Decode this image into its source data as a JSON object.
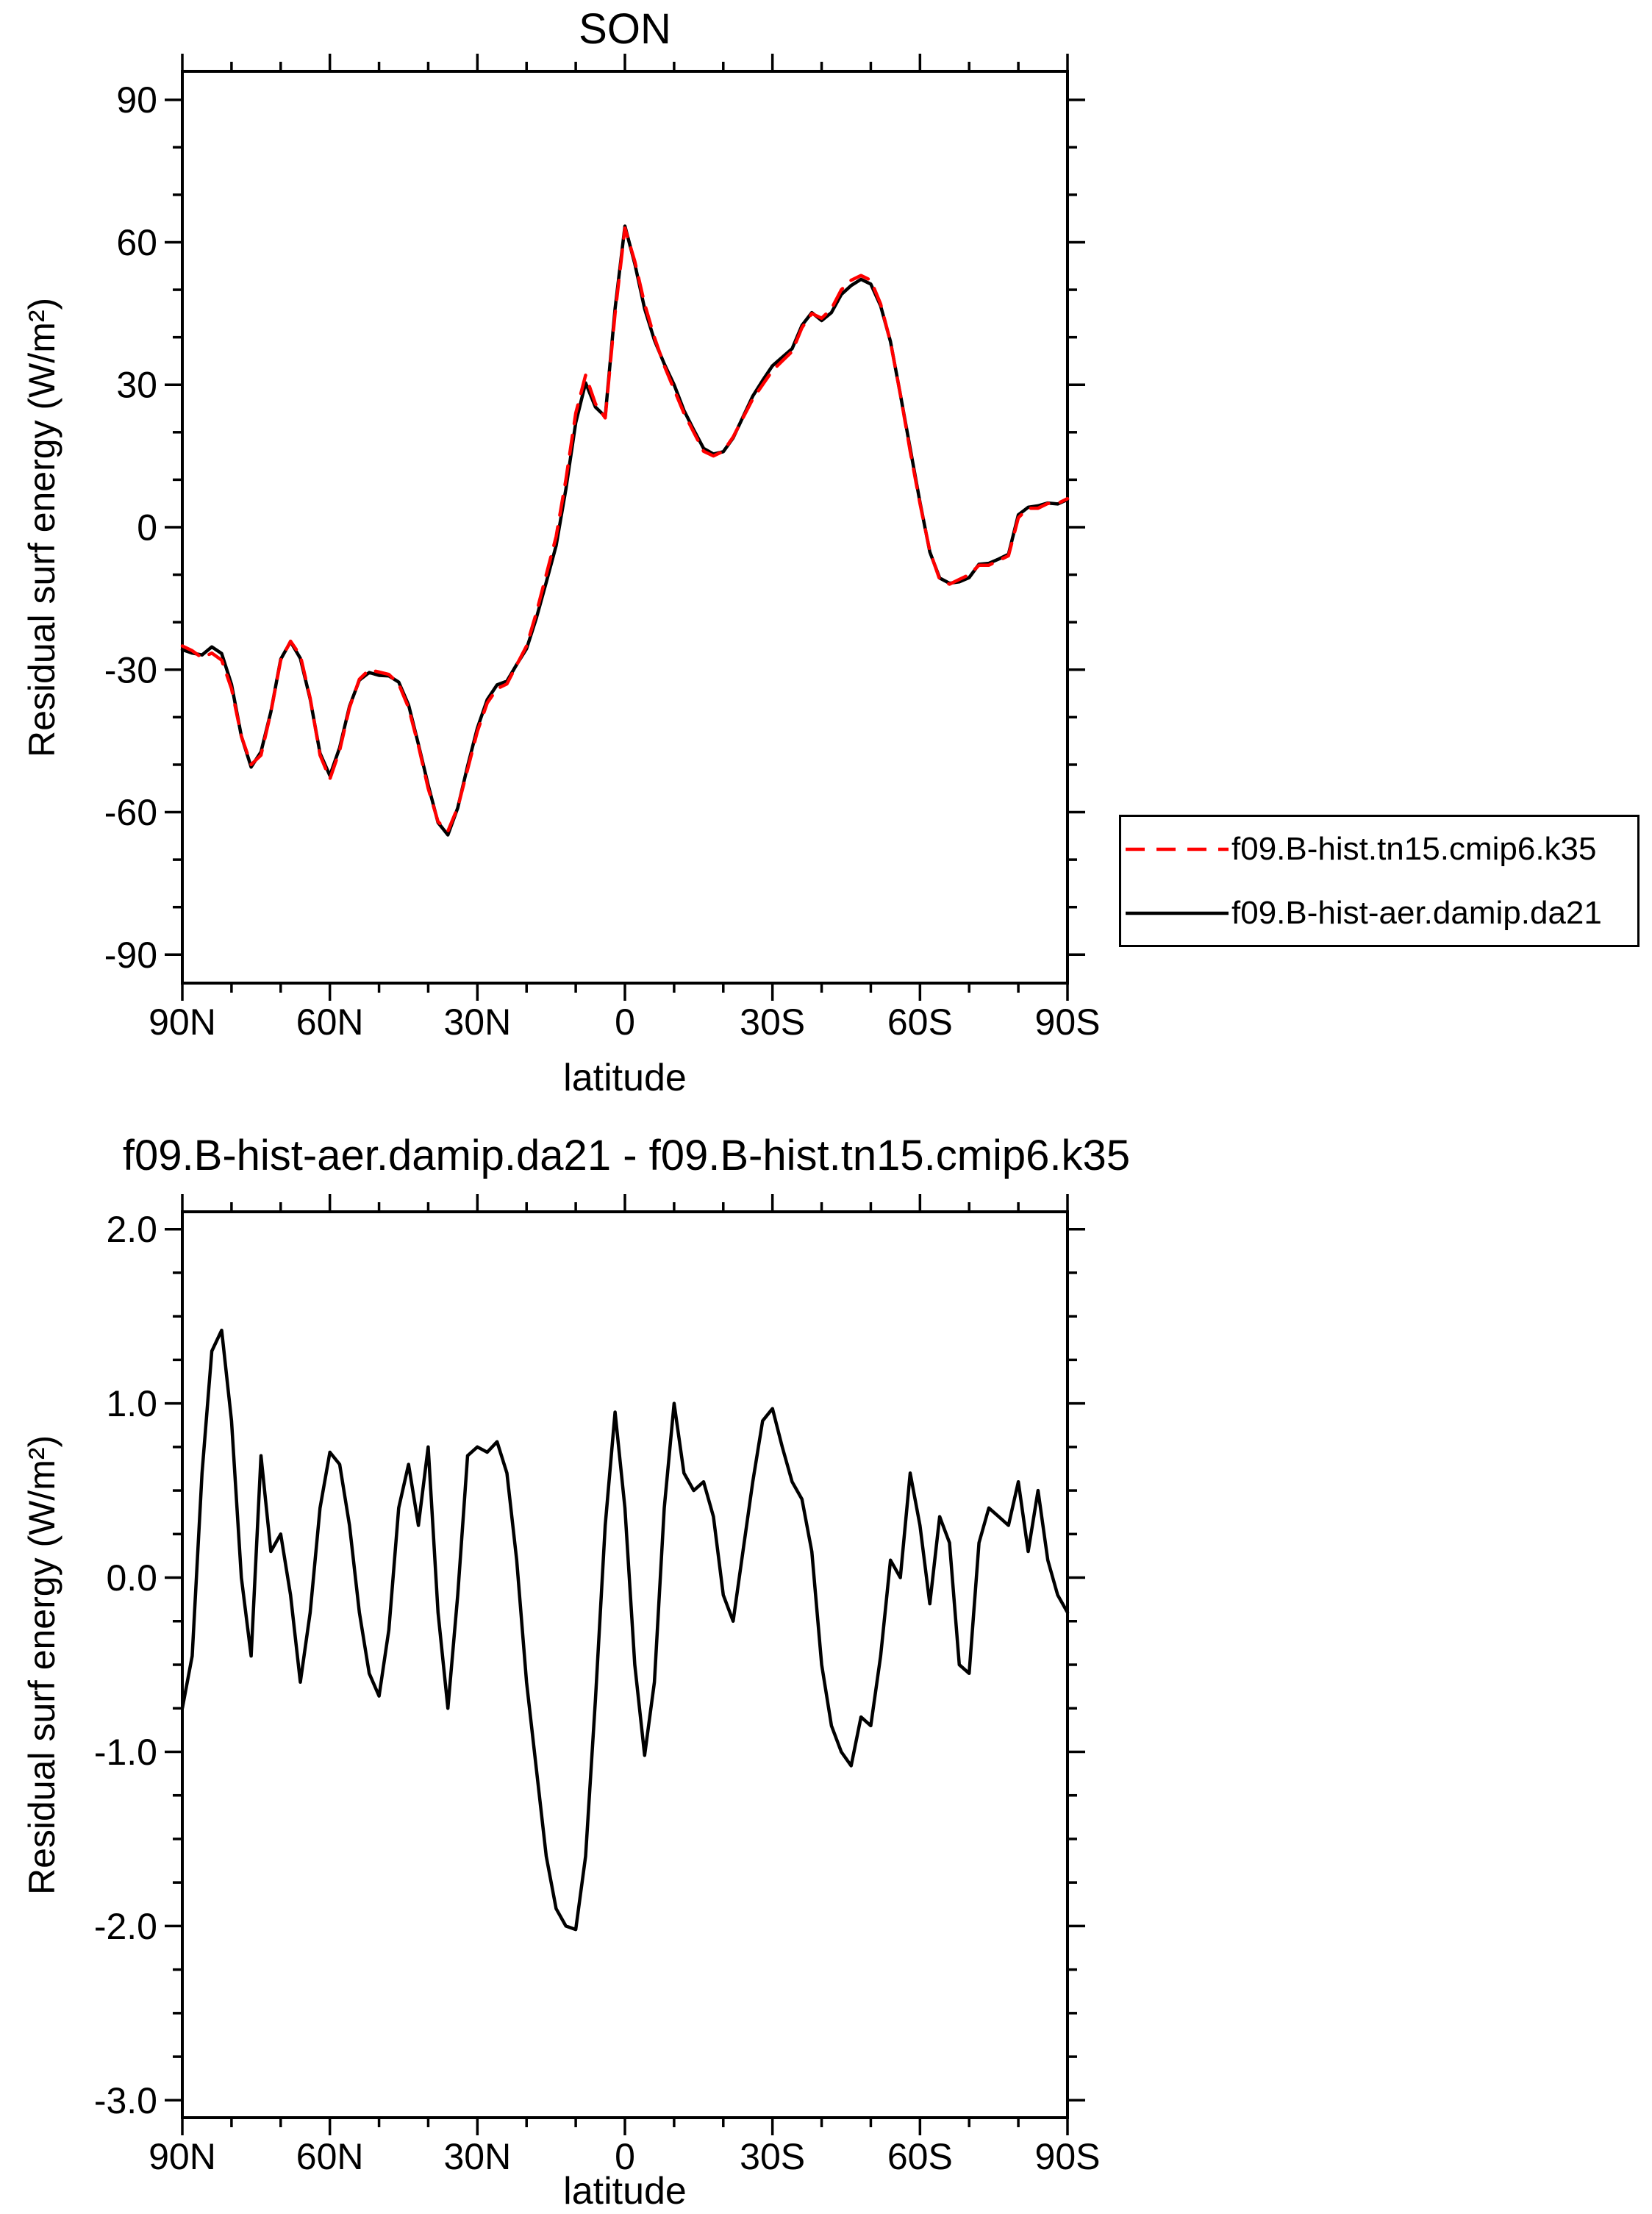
{
  "figure": {
    "background": "#ffffff",
    "axis_color": "#000000"
  },
  "chart_data": [
    {
      "id": "top",
      "type": "line",
      "title": "SON",
      "xlabel": "latitude",
      "ylabel": "Residual surf energy (W/m²)",
      "xlim": [
        90,
        -90
      ],
      "ylim": [
        -90,
        90
      ],
      "grid": false,
      "legend_position": "outside-right",
      "xticks": {
        "values": [
          90,
          60,
          30,
          0,
          -30,
          -60,
          -90
        ],
        "labels": [
          "90N",
          "60N",
          "30N",
          "0",
          "30S",
          "60S",
          "90S"
        ],
        "minor_step": 10
      },
      "yticks": {
        "values": [
          -90,
          -60,
          -30,
          0,
          30,
          60,
          90
        ],
        "labels": [
          "-90",
          "-60",
          "-30",
          "0",
          "30",
          "60",
          "90"
        ],
        "minor_step": 10
      },
      "x": [
        90,
        88,
        86,
        84,
        82,
        80,
        78,
        76,
        74,
        72,
        70,
        68,
        66,
        64,
        62,
        60,
        58,
        56,
        54,
        52,
        50,
        48,
        46,
        44,
        42,
        40,
        38,
        36,
        34,
        32,
        30,
        28,
        26,
        24,
        22,
        20,
        18,
        16,
        14,
        12,
        10,
        8,
        6,
        4,
        2,
        0,
        -2,
        -4,
        -6,
        -8,
        -10,
        -12,
        -14,
        -16,
        -18,
        -20,
        -22,
        -24,
        -26,
        -28,
        -30,
        -32,
        -34,
        -36,
        -38,
        -40,
        -42,
        -44,
        -46,
        -48,
        -50,
        -52,
        -54,
        -56,
        -58,
        -60,
        -62,
        -64,
        -66,
        -68,
        -70,
        -72,
        -74,
        -76,
        -78,
        -80,
        -82,
        -84,
        -86,
        -88,
        -90
      ],
      "series": [
        {
          "name": "f09.B-hist.tn15.cmip6.k35",
          "color": "#ff0000",
          "style": "dashed",
          "values": [
            -25,
            -26,
            -27.5,
            -26.5,
            -28,
            -34,
            -44,
            -50,
            -48,
            -39,
            -28,
            -24,
            -27,
            -36,
            -48,
            -53,
            -47,
            -38,
            -32,
            -30,
            -30.5,
            -31,
            -33,
            -38,
            -46,
            -55,
            -62,
            -64,
            -59,
            -51,
            -43,
            -37,
            -34,
            -33,
            -29,
            -25,
            -18,
            -10,
            -2,
            10,
            24,
            32,
            26,
            23,
            45,
            63,
            56,
            47,
            40,
            34,
            29,
            24,
            20,
            16,
            15,
            16,
            19,
            23,
            27,
            30,
            33,
            35,
            37,
            42,
            45,
            44,
            46,
            50,
            52,
            53,
            52,
            47,
            39,
            28,
            16,
            5,
            -5,
            -11,
            -12,
            -11,
            -10,
            -8,
            -8,
            -7,
            -6,
            2,
            4,
            4,
            5,
            5,
            6
          ]
        },
        {
          "name": "f09.B-hist-aer.damip.da21",
          "color": "#000000",
          "style": "solid",
          "values": [
            -25.8,
            -26.5,
            -26.9,
            -25.2,
            -26.6,
            -33.1,
            -44,
            -50.5,
            -47.3,
            -38.9,
            -27.8,
            -24.1,
            -27.6,
            -36.2,
            -47.6,
            -52.3,
            -46.4,
            -37.7,
            -32.2,
            -30.6,
            -31.2,
            -31.3,
            -32.6,
            -37.4,
            -45.7,
            -54.3,
            -62.2,
            -64.8,
            -59.1,
            -50.3,
            -42.3,
            -36.3,
            -33.2,
            -32.4,
            -28.9,
            -25.6,
            -19.1,
            -11.6,
            -3.9,
            8,
            22,
            30.4,
            25.3,
            23.3,
            46,
            63.4,
            55.5,
            46,
            39.4,
            34.4,
            30,
            24.6,
            20.5,
            16.6,
            15.4,
            15.9,
            18.8,
            23.2,
            27.6,
            30.9,
            34,
            35.8,
            37.6,
            42.5,
            45.2,
            43.5,
            45.2,
            49,
            50.9,
            52.2,
            51.2,
            46.6,
            39.1,
            28,
            16.6,
            5.3,
            -5.2,
            -10.7,
            -11.8,
            -11.5,
            -10.6,
            -7.8,
            -7.6,
            -6.7,
            -5.7,
            2.6,
            4.2,
            4.5,
            5.1,
            4.9,
            5.8
          ]
        }
      ]
    },
    {
      "id": "difference",
      "type": "line",
      "title": "f09.B-hist-aer.damip.da21 - f09.B-hist.tn15.cmip6.k35",
      "xlabel": "latitude",
      "ylabel": "Residual surf energy (W/m²)",
      "xlim": [
        90,
        -90
      ],
      "ylim": [
        -3.0,
        2.0
      ],
      "grid": false,
      "legend_position": "none",
      "xticks": {
        "values": [
          90,
          60,
          30,
          0,
          -30,
          -60,
          -90
        ],
        "labels": [
          "90N",
          "60N",
          "30N",
          "0",
          "30S",
          "60S",
          "90S"
        ],
        "minor_step": 10
      },
      "yticks": {
        "values": [
          -3,
          -2,
          -1,
          0,
          1,
          2
        ],
        "labels": [
          "-3.0",
          "-2.0",
          "-1.0",
          "0.0",
          "1.0",
          "2.0"
        ],
        "minor_step": 0.25
      },
      "x": [
        90,
        88,
        86,
        84,
        82,
        80,
        78,
        76,
        74,
        72,
        70,
        68,
        66,
        64,
        62,
        60,
        58,
        56,
        54,
        52,
        50,
        48,
        46,
        44,
        42,
        40,
        38,
        36,
        34,
        32,
        30,
        28,
        26,
        24,
        22,
        20,
        18,
        16,
        14,
        12,
        10,
        8,
        6,
        4,
        2,
        0,
        -2,
        -4,
        -6,
        -8,
        -10,
        -12,
        -14,
        -16,
        -18,
        -20,
        -22,
        -24,
        -26,
        -28,
        -30,
        -32,
        -34,
        -36,
        -38,
        -40,
        -42,
        -44,
        -46,
        -48,
        -50,
        -52,
        -54,
        -56,
        -58,
        -60,
        -62,
        -64,
        -66,
        -68,
        -70,
        -72,
        -74,
        -76,
        -78,
        -80,
        -82,
        -84,
        -86,
        -88,
        -90
      ],
      "series": [
        {
          "name": "f09.B-hist-aer.damip.da21 - f09.B-hist.tn15.cmip6.k35",
          "color": "#000000",
          "style": "solid",
          "values": [
            -0.75,
            -0.45,
            0.6,
            1.3,
            1.42,
            0.9,
            0.0,
            -0.45,
            0.7,
            0.15,
            0.25,
            -0.1,
            -0.6,
            -0.2,
            0.4,
            0.72,
            0.65,
            0.3,
            -0.2,
            -0.55,
            -0.68,
            -0.3,
            0.4,
            0.65,
            0.3,
            0.75,
            -0.2,
            -0.75,
            -0.1,
            0.7,
            0.75,
            0.72,
            0.78,
            0.6,
            0.1,
            -0.6,
            -1.1,
            -1.6,
            -1.9,
            -2.0,
            -2.02,
            -1.6,
            -0.7,
            0.3,
            0.95,
            0.4,
            -0.5,
            -1.02,
            -0.6,
            0.4,
            1.0,
            0.6,
            0.5,
            0.55,
            0.35,
            -0.1,
            -0.25,
            0.15,
            0.55,
            0.9,
            0.97,
            0.75,
            0.55,
            0.45,
            0.15,
            -0.5,
            -0.85,
            -1.0,
            -1.08,
            -0.8,
            -0.85,
            -0.45,
            0.1,
            0.0,
            0.6,
            0.3,
            -0.15,
            0.35,
            0.2,
            -0.5,
            -0.55,
            0.2,
            0.4,
            0.35,
            0.3,
            0.55,
            0.15,
            0.5,
            0.1,
            -0.1,
            -0.2
          ]
        }
      ]
    }
  ]
}
